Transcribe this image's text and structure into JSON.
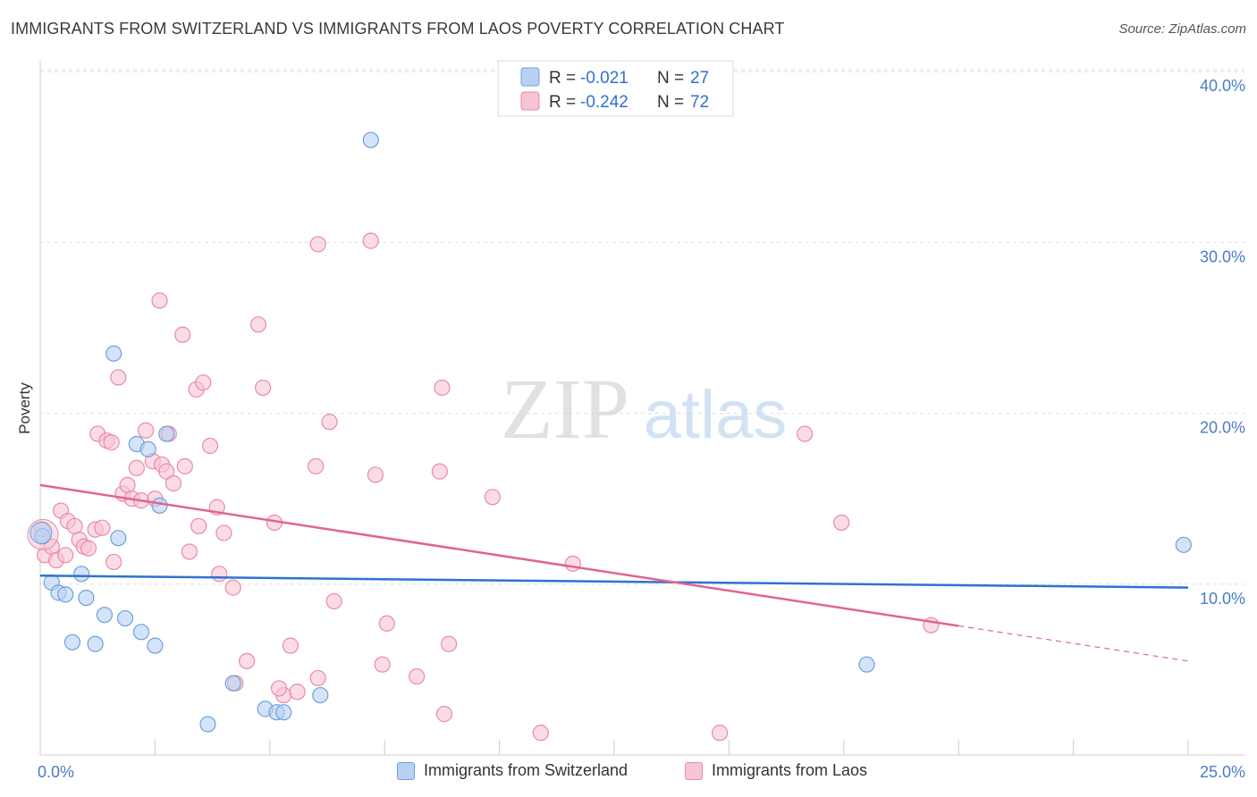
{
  "title": "IMMIGRANTS FROM SWITZERLAND VS IMMIGRANTS FROM LAOS POVERTY CORRELATION CHART",
  "source": "Source: ZipAtlas.com",
  "watermark": {
    "zip": "ZIP",
    "atlas": "atlas"
  },
  "legend_stats": [
    {
      "r_label": "R =",
      "r_value": "-0.021",
      "n_label": "N =",
      "n_value": "27"
    },
    {
      "r_label": "R =",
      "r_value": "-0.242",
      "n_label": "N =",
      "n_value": "72"
    }
  ],
  "colors": {
    "blue_fill": "#b8d1f3",
    "blue_stroke": "#6f9fdc",
    "blue_line": "#2f72cf",
    "pink_fill": "#f8c4d4",
    "pink_stroke": "#e88aa8",
    "pink_line": "#e0648f",
    "axis_text": "#4a7cc9",
    "grid": "#dddddd"
  },
  "chart_data": {
    "type": "scatter",
    "title": "IMMIGRANTS FROM SWITZERLAND VS IMMIGRANTS FROM LAOS POVERTY CORRELATION CHART",
    "xlabel": "",
    "ylabel": "Poverty",
    "xlim": [
      0,
      25
    ],
    "ylim": [
      0,
      40
    ],
    "x_tick_labels": [
      "0.0%",
      "25.0%"
    ],
    "y_tick_values": [
      10,
      20,
      30,
      40
    ],
    "y_tick_labels": [
      "10.0%",
      "20.0%",
      "30.0%",
      "40.0%"
    ],
    "grid": "horizontal dashed",
    "legend_position": "top-center",
    "series": [
      {
        "name": "Immigrants from Switzerland",
        "color": "blue",
        "points": [
          [
            0.05,
            12.8
          ],
          [
            0.25,
            10.1
          ],
          [
            0.4,
            9.5
          ],
          [
            0.55,
            9.4
          ],
          [
            0.9,
            10.6
          ],
          [
            1.0,
            9.2
          ],
          [
            0.7,
            6.6
          ],
          [
            1.2,
            6.5
          ],
          [
            1.4,
            8.2
          ],
          [
            1.6,
            23.5
          ],
          [
            1.7,
            12.7
          ],
          [
            1.85,
            8.0
          ],
          [
            2.1,
            18.2
          ],
          [
            2.2,
            7.2
          ],
          [
            2.35,
            17.9
          ],
          [
            2.5,
            6.4
          ],
          [
            2.6,
            14.6
          ],
          [
            2.75,
            18.8
          ],
          [
            3.65,
            1.8
          ],
          [
            4.2,
            4.2
          ],
          [
            4.9,
            2.7
          ],
          [
            5.15,
            2.5
          ],
          [
            5.3,
            2.5
          ],
          [
            6.1,
            3.5
          ],
          [
            7.2,
            36.0
          ],
          [
            18.0,
            5.3
          ],
          [
            24.9,
            12.3
          ]
        ],
        "trend": {
          "x": [
            0,
            25
          ],
          "y": [
            10.5,
            9.8
          ]
        }
      },
      {
        "name": "Immigrants from Laos",
        "color": "pink",
        "points": [
          [
            0.05,
            13.2
          ],
          [
            0.1,
            11.7
          ],
          [
            0.25,
            12.2
          ],
          [
            0.35,
            11.4
          ],
          [
            0.45,
            14.3
          ],
          [
            0.55,
            11.7
          ],
          [
            0.6,
            13.7
          ],
          [
            0.75,
            13.4
          ],
          [
            0.85,
            12.6
          ],
          [
            0.95,
            12.2
          ],
          [
            1.05,
            12.1
          ],
          [
            1.2,
            13.2
          ],
          [
            1.25,
            18.8
          ],
          [
            1.35,
            13.3
          ],
          [
            1.45,
            18.4
          ],
          [
            1.55,
            18.3
          ],
          [
            1.6,
            11.3
          ],
          [
            1.7,
            22.1
          ],
          [
            1.8,
            15.3
          ],
          [
            1.9,
            15.8
          ],
          [
            2.0,
            15.0
          ],
          [
            2.1,
            16.8
          ],
          [
            2.2,
            14.9
          ],
          [
            2.3,
            19.0
          ],
          [
            2.45,
            17.2
          ],
          [
            2.5,
            15.0
          ],
          [
            2.6,
            26.6
          ],
          [
            2.65,
            17.0
          ],
          [
            2.75,
            16.6
          ],
          [
            2.8,
            18.8
          ],
          [
            2.9,
            15.9
          ],
          [
            3.1,
            24.6
          ],
          [
            3.15,
            16.9
          ],
          [
            3.25,
            11.9
          ],
          [
            3.4,
            21.4
          ],
          [
            3.45,
            13.4
          ],
          [
            3.55,
            21.8
          ],
          [
            3.7,
            18.1
          ],
          [
            3.85,
            14.5
          ],
          [
            3.9,
            10.6
          ],
          [
            4.0,
            13.0
          ],
          [
            4.2,
            9.8
          ],
          [
            4.25,
            4.2
          ],
          [
            4.5,
            5.5
          ],
          [
            4.75,
            25.2
          ],
          [
            4.85,
            21.5
          ],
          [
            5.1,
            13.6
          ],
          [
            5.3,
            3.5
          ],
          [
            5.45,
            6.4
          ],
          [
            5.6,
            3.7
          ],
          [
            6.0,
            16.9
          ],
          [
            6.05,
            4.5
          ],
          [
            6.05,
            29.9
          ],
          [
            6.3,
            19.5
          ],
          [
            6.4,
            9.0
          ],
          [
            7.2,
            30.1
          ],
          [
            7.3,
            16.4
          ],
          [
            7.45,
            5.3
          ],
          [
            7.55,
            7.7
          ],
          [
            8.2,
            4.6
          ],
          [
            8.7,
            16.6
          ],
          [
            8.75,
            21.5
          ],
          [
            8.8,
            2.4
          ],
          [
            8.9,
            6.5
          ],
          [
            9.85,
            15.1
          ],
          [
            10.9,
            1.3
          ],
          [
            11.6,
            11.2
          ],
          [
            14.8,
            1.3
          ],
          [
            16.65,
            18.8
          ],
          [
            17.45,
            13.6
          ],
          [
            19.4,
            7.6
          ],
          [
            5.2,
            3.9
          ]
        ],
        "trend": {
          "x": [
            0,
            25
          ],
          "y": [
            15.8,
            5.5
          ],
          "solid_until_x": 20.0
        }
      }
    ]
  }
}
